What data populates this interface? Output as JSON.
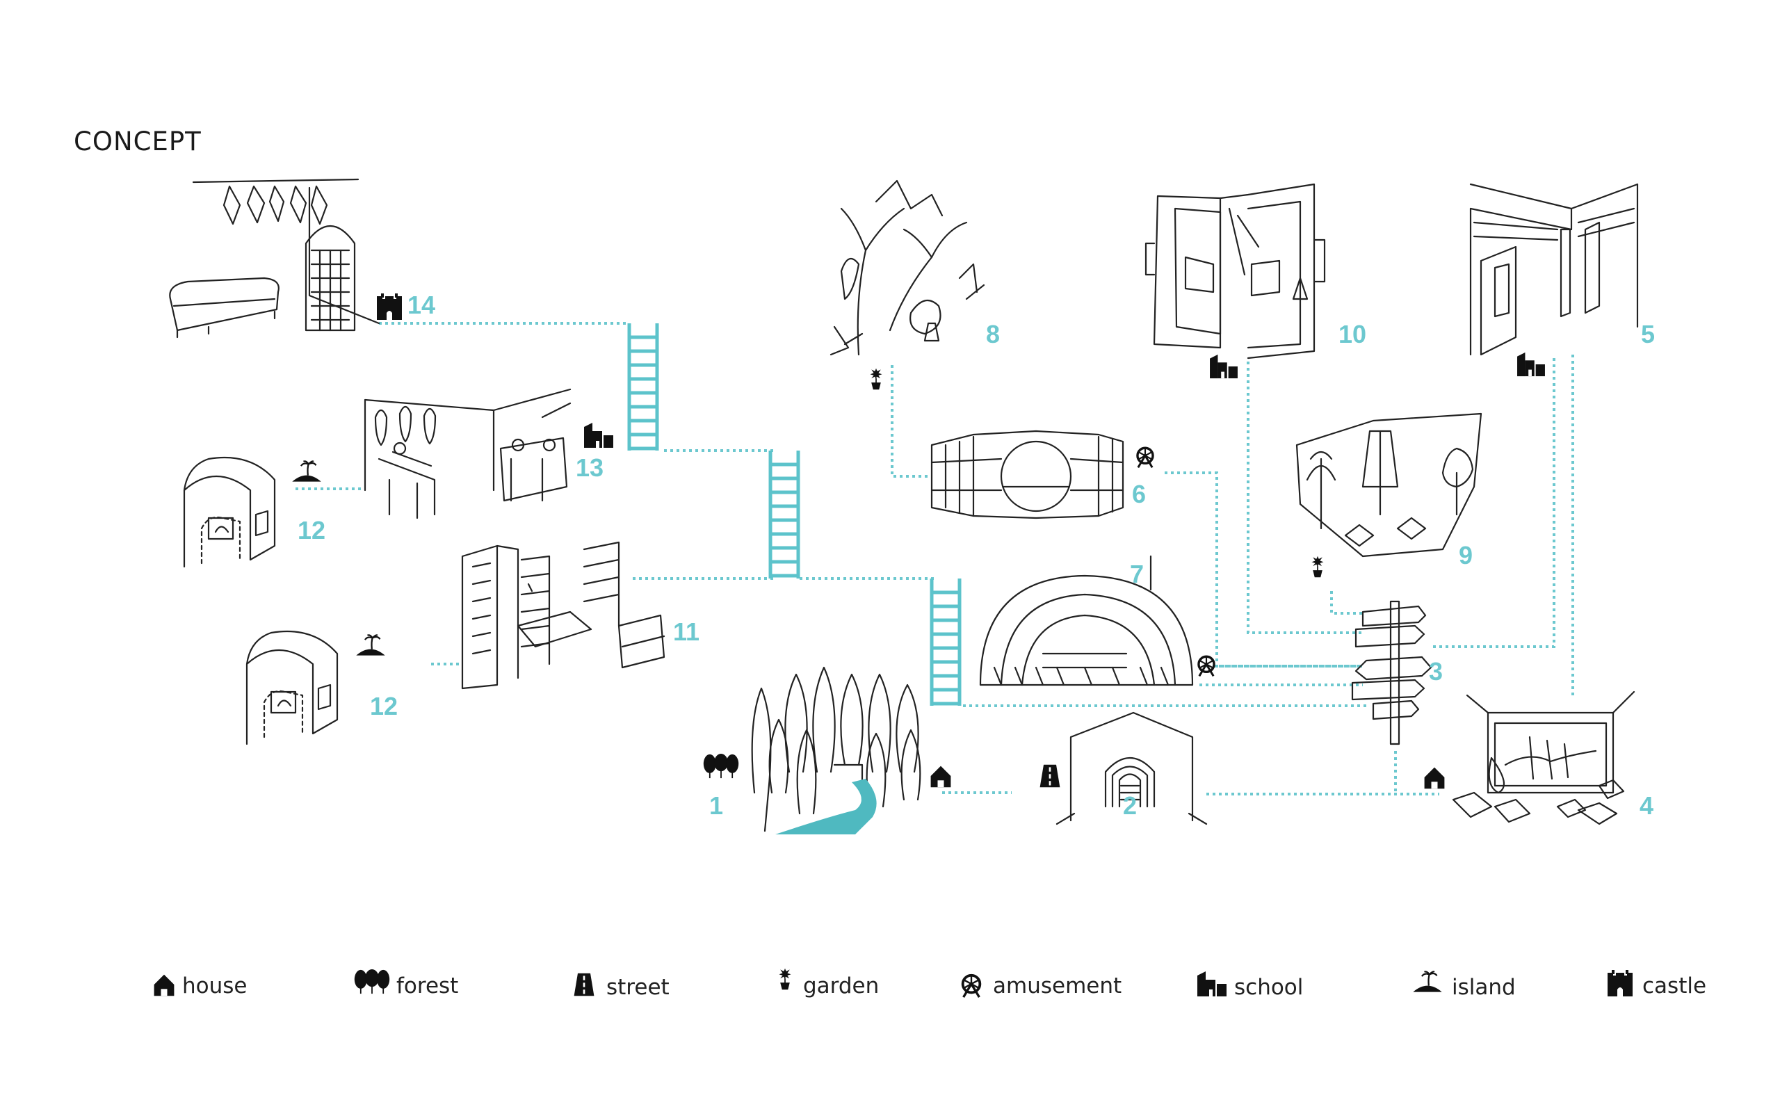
{
  "title": "CONCEPT",
  "colors": {
    "accent": "#6cc8cf",
    "line": "#222222",
    "river": "#4fb9c0"
  },
  "nodes": [
    {
      "id": "1",
      "label": "1",
      "icon": "forest-icon"
    },
    {
      "id": "2",
      "label": "2",
      "icon": "street-icon"
    },
    {
      "id": "3",
      "label": "3",
      "icon": "signpost-icon"
    },
    {
      "id": "4",
      "label": "4",
      "icon": "house-icon"
    },
    {
      "id": "5",
      "label": "5",
      "icon": "school-icon"
    },
    {
      "id": "6",
      "label": "6",
      "icon": "amusement-icon"
    },
    {
      "id": "7",
      "label": "7",
      "icon": "amusement-icon"
    },
    {
      "id": "8",
      "label": "8",
      "icon": "garden-icon"
    },
    {
      "id": "9",
      "label": "9",
      "icon": "garden-icon"
    },
    {
      "id": "10",
      "label": "10",
      "icon": "school-icon"
    },
    {
      "id": "11",
      "label": "11",
      "icon": "island-icon"
    },
    {
      "id": "12a",
      "label": "12",
      "icon": "island-icon"
    },
    {
      "id": "12b",
      "label": "12",
      "icon": "island-icon"
    },
    {
      "id": "13",
      "label": "13",
      "icon": "school-icon"
    },
    {
      "id": "14",
      "label": "14",
      "icon": "castle-icon"
    }
  ],
  "legend": [
    {
      "icon": "house-icon",
      "label": "house"
    },
    {
      "icon": "forest-icon",
      "label": "forest"
    },
    {
      "icon": "street-icon",
      "label": "street"
    },
    {
      "icon": "garden-icon",
      "label": "garden"
    },
    {
      "icon": "amusement-icon",
      "label": "amusement"
    },
    {
      "icon": "school-icon",
      "label": "school"
    },
    {
      "icon": "island-icon",
      "label": "island"
    },
    {
      "icon": "castle-icon",
      "label": "castle"
    }
  ]
}
